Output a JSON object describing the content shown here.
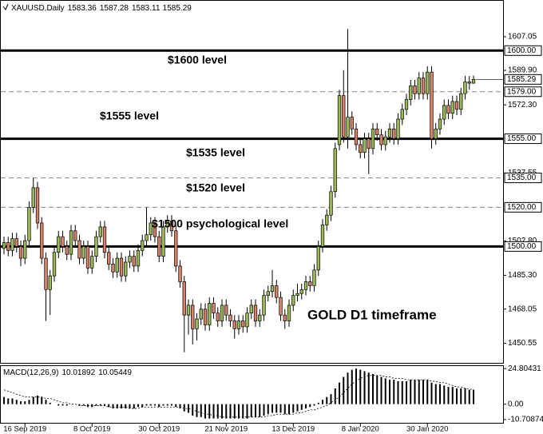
{
  "chart_data": {
    "type": "candlestick",
    "symbol": "XAUUSD,Daily",
    "categories": [
      null,
      null,
      null,
      null,
      null,
      "16 Sep 2019",
      null,
      null,
      null,
      null,
      null,
      null,
      null,
      null,
      null,
      null,
      null,
      null,
      null,
      null,
      null,
      "8 Oct 2019",
      null,
      null,
      null,
      null,
      null,
      null,
      null,
      null,
      null,
      null,
      null,
      null,
      null,
      null,
      null,
      "30 Oct 2019",
      null,
      null,
      null,
      null,
      null,
      null,
      null,
      null,
      null,
      null,
      null,
      null,
      null,
      null,
      null,
      "21 Nov 2019",
      null,
      null,
      null,
      null,
      null,
      null,
      null,
      null,
      null,
      null,
      null,
      null,
      null,
      null,
      null,
      "13 Dec 2019",
      null,
      null,
      null,
      null,
      null,
      null,
      null,
      null,
      null,
      null,
      null,
      null,
      null,
      null,
      null,
      "8 Jan 2020",
      null,
      null,
      null,
      null,
      null,
      null,
      null,
      null,
      null,
      null,
      null,
      null,
      null,
      null,
      null,
      "30 Jan 2020",
      null,
      null,
      null,
      null,
      null,
      null,
      null,
      null,
      null,
      null,
      null
    ],
    "ohlc": [
      [
        1499,
        1505,
        1496,
        1502
      ],
      [
        1502,
        1505,
        1495,
        1498
      ],
      [
        1498,
        1507,
        1495,
        1504
      ],
      [
        1504,
        1507,
        1497,
        1500
      ],
      [
        1500,
        1503,
        1490,
        1494
      ],
      [
        1494,
        1506,
        1491,
        1503
      ],
      [
        1503,
        1523,
        1500,
        1520
      ],
      [
        1520,
        1535,
        1517,
        1530
      ],
      [
        1530,
        1533,
        1509,
        1512
      ],
      [
        1512,
        1515,
        1491,
        1494
      ],
      [
        1494,
        1497,
        1462,
        1478
      ],
      [
        1478,
        1488,
        1465,
        1485
      ],
      [
        1485,
        1500,
        1482,
        1497
      ],
      [
        1497,
        1508,
        1494,
        1505
      ],
      [
        1505,
        1508,
        1497,
        1500
      ],
      [
        1500,
        1503,
        1493,
        1496
      ],
      [
        1496,
        1511,
        1493,
        1508
      ],
      [
        1508,
        1511,
        1500,
        1503
      ],
      [
        1503,
        1506,
        1491,
        1494
      ],
      [
        1494,
        1503,
        1491,
        1500
      ],
      [
        1500,
        1503,
        1486,
        1489
      ],
      [
        1489,
        1498,
        1486,
        1495
      ],
      [
        1495,
        1508,
        1492,
        1505
      ],
      [
        1505,
        1513,
        1502,
        1510
      ],
      [
        1510,
        1513,
        1494,
        1497
      ],
      [
        1497,
        1500,
        1488,
        1491
      ],
      [
        1491,
        1494,
        1484,
        1487
      ],
      [
        1487,
        1497,
        1484,
        1494
      ],
      [
        1494,
        1497,
        1482,
        1485
      ],
      [
        1485,
        1495,
        1482,
        1492
      ],
      [
        1492,
        1498,
        1489,
        1495
      ],
      [
        1495,
        1498,
        1487,
        1490
      ],
      [
        1490,
        1501,
        1487,
        1498
      ],
      [
        1498,
        1506,
        1495,
        1503
      ],
      [
        1503,
        1520,
        1500,
        1506
      ],
      [
        1506,
        1515,
        1503,
        1512
      ],
      [
        1512,
        1515,
        1502,
        1505
      ],
      [
        1505,
        1508,
        1492,
        1495
      ],
      [
        1495,
        1513,
        1492,
        1510
      ],
      [
        1510,
        1516,
        1507,
        1513
      ],
      [
        1513,
        1516,
        1505,
        1508
      ],
      [
        1508,
        1511,
        1487,
        1490
      ],
      [
        1490,
        1493,
        1479,
        1482
      ],
      [
        1482,
        1485,
        1446,
        1465
      ],
      [
        1465,
        1473,
        1455,
        1470
      ],
      [
        1470,
        1473,
        1450,
        1458
      ],
      [
        1458,
        1466,
        1452,
        1463
      ],
      [
        1463,
        1471,
        1460,
        1468
      ],
      [
        1468,
        1471,
        1457,
        1460
      ],
      [
        1460,
        1474,
        1457,
        1471
      ],
      [
        1471,
        1474,
        1463,
        1466
      ],
      [
        1466,
        1469,
        1459,
        1462
      ],
      [
        1462,
        1473,
        1459,
        1470
      ],
      [
        1470,
        1473,
        1462,
        1465
      ],
      [
        1465,
        1468,
        1459,
        1462
      ],
      [
        1462,
        1465,
        1453,
        1458
      ],
      [
        1458,
        1465,
        1455,
        1462
      ],
      [
        1462,
        1465,
        1456,
        1459
      ],
      [
        1459,
        1469,
        1456,
        1466
      ],
      [
        1466,
        1473,
        1463,
        1470
      ],
      [
        1470,
        1473,
        1459,
        1462
      ],
      [
        1462,
        1468,
        1459,
        1465
      ],
      [
        1465,
        1478,
        1462,
        1475
      ],
      [
        1475,
        1480,
        1472,
        1477
      ],
      [
        1477,
        1488,
        1474,
        1480
      ],
      [
        1480,
        1483,
        1471,
        1474
      ],
      [
        1474,
        1477,
        1462,
        1465
      ],
      [
        1465,
        1468,
        1458,
        1462
      ],
      [
        1462,
        1473,
        1459,
        1470
      ],
      [
        1470,
        1478,
        1467,
        1475
      ],
      [
        1475,
        1481,
        1472,
        1476
      ],
      [
        1476,
        1481,
        1473,
        1478
      ],
      [
        1478,
        1485,
        1475,
        1482
      ],
      [
        1482,
        1485,
        1477,
        1480
      ],
      [
        1480,
        1491,
        1477,
        1488
      ],
      [
        1488,
        1503,
        1485,
        1500
      ],
      [
        1500,
        1514,
        1497,
        1511
      ],
      [
        1511,
        1519,
        1508,
        1516
      ],
      [
        1516,
        1531,
        1513,
        1528
      ],
      [
        1528,
        1553,
        1525,
        1550
      ],
      [
        1552,
        1580,
        1549,
        1577
      ],
      [
        1577,
        1590,
        1553,
        1556
      ],
      [
        1556,
        1611,
        1550,
        1566
      ],
      [
        1566,
        1569,
        1557,
        1560
      ],
      [
        1560,
        1563,
        1549,
        1552
      ],
      [
        1552,
        1555,
        1545,
        1548
      ],
      [
        1548,
        1558,
        1545,
        1555
      ],
      [
        1555,
        1558,
        1537,
        1550
      ],
      [
        1550,
        1563,
        1547,
        1560
      ],
      [
        1560,
        1563,
        1554,
        1557
      ],
      [
        1557,
        1560,
        1549,
        1552
      ],
      [
        1552,
        1559,
        1549,
        1556
      ],
      [
        1556,
        1563,
        1553,
        1560
      ],
      [
        1560,
        1563,
        1552,
        1555
      ],
      [
        1555,
        1568,
        1552,
        1565
      ],
      [
        1565,
        1573,
        1562,
        1570
      ],
      [
        1570,
        1578,
        1567,
        1575
      ],
      [
        1575,
        1585,
        1572,
        1582
      ],
      [
        1582,
        1585,
        1575,
        1578
      ],
      [
        1578,
        1589,
        1575,
        1586
      ],
      [
        1586,
        1589,
        1575,
        1578
      ],
      [
        1578,
        1592,
        1575,
        1589
      ],
      [
        1589,
        1592,
        1550,
        1555
      ],
      [
        1555,
        1563,
        1552,
        1560
      ],
      [
        1560,
        1568,
        1557,
        1565
      ],
      [
        1565,
        1575,
        1562,
        1572
      ],
      [
        1572,
        1575,
        1565,
        1568
      ],
      [
        1568,
        1577,
        1565,
        1574
      ],
      [
        1574,
        1577,
        1567,
        1570
      ],
      [
        1570,
        1581,
        1567,
        1578
      ],
      [
        1578,
        1587,
        1575,
        1584
      ],
      [
        1584,
        1587,
        1580,
        1583.36
      ],
      [
        1583.36,
        1587.28,
        1583.11,
        1585.29
      ]
    ],
    "up_color": "#9bbb59",
    "down_color": "#d9826a",
    "ylim": [
      1441,
      1625
    ],
    "yticks": [
      1607.05,
      {
        "value": 1589.9,
        "label": "1589.90"
      },
      {
        "value": 1572.3,
        "label": "1572.30"
      },
      1537.55,
      {
        "value": 1502.8,
        "label": "1502.80"
      },
      {
        "value": 1485.3,
        "label": "1485.30"
      },
      1468.05,
      1450.55
    ],
    "levels": [
      {
        "value": 1600,
        "label": "1600.00",
        "style": "solid"
      },
      {
        "value": 1579,
        "label": "1579.00",
        "style": "dashed"
      },
      {
        "value": 1555,
        "label": "1555.00",
        "style": "solid"
      },
      {
        "value": 1535,
        "label": "1535.00",
        "style": "dashed"
      },
      {
        "value": 1520,
        "label": "1520.00",
        "style": "dashed"
      },
      {
        "value": 1500,
        "label": "1500.00",
        "style": "solid"
      }
    ],
    "annotations": [
      "$1600 level",
      "$1555 level",
      "$1535 level",
      "$1520 level",
      "$1500 psychological level",
      "GOLD D1 timeframe"
    ],
    "macd": {
      "name": "MACD(12,26,9)",
      "values": [
        5,
        4,
        4,
        3,
        2,
        2,
        3,
        5,
        6,
        5,
        3,
        1,
        0,
        -1,
        -1,
        -1,
        0,
        0,
        -1,
        -1,
        -2,
        -2,
        -1,
        -1,
        -1,
        -2,
        -3,
        -3,
        -3,
        -3,
        -3,
        -3,
        -2,
        -2,
        -1,
        -1,
        -1,
        -2,
        -1,
        -1,
        -1,
        -2,
        -3,
        -5,
        -6,
        -8,
        -9,
        -9,
        -10,
        -10,
        -10,
        -10,
        -10,
        -10,
        -10,
        -10,
        -10,
        -10,
        -10,
        -9,
        -9,
        -9,
        -8,
        -7,
        -6,
        -6,
        -6,
        -7,
        -7,
        -6,
        -5,
        -4,
        -3,
        -2,
        -1,
        1,
        3,
        5,
        7,
        11,
        15,
        19,
        22,
        24,
        24.8,
        24,
        23,
        22,
        21,
        20,
        19,
        18,
        17,
        17,
        16,
        16,
        16,
        17,
        17,
        17,
        17,
        17,
        15,
        14,
        14,
        13,
        12,
        12,
        11,
        11,
        11,
        10,
        10.01892
      ],
      "signal": [
        10,
        9,
        8,
        7,
        6,
        5,
        5,
        5,
        5,
        5,
        4,
        4,
        3,
        2,
        1,
        1,
        0,
        0,
        -1,
        -1,
        -1,
        -1,
        -1,
        -1,
        -1,
        -2,
        -2,
        -2,
        -2,
        -2,
        -3,
        -3,
        -3,
        -2,
        -2,
        -2,
        -2,
        -2,
        -2,
        -2,
        -2,
        -2,
        -2,
        -3,
        -3,
        -4,
        -5,
        -6,
        -7,
        -7,
        -8,
        -8,
        -9,
        -9,
        -9,
        -9,
        -9,
        -9,
        -9,
        -9,
        -9,
        -9,
        -9,
        -8,
        -8,
        -7,
        -7,
        -7,
        -7,
        -7,
        -6,
        -6,
        -5,
        -4,
        -4,
        -3,
        -2,
        -1,
        1,
        3,
        5,
        8,
        11,
        14,
        16,
        18,
        19,
        20,
        20,
        20,
        20,
        19,
        19,
        18,
        18,
        18,
        17,
        17,
        17,
        17,
        17,
        17,
        16,
        16,
        15,
        15,
        14,
        13,
        12,
        12,
        11,
        10.5,
        10.05449
      ],
      "ylim": [
        -13,
        26
      ],
      "yticks": [
        24.80431,
        {
          "value": 0,
          "label": "0.00"
        },
        -10.70874
      ]
    }
  }
}
